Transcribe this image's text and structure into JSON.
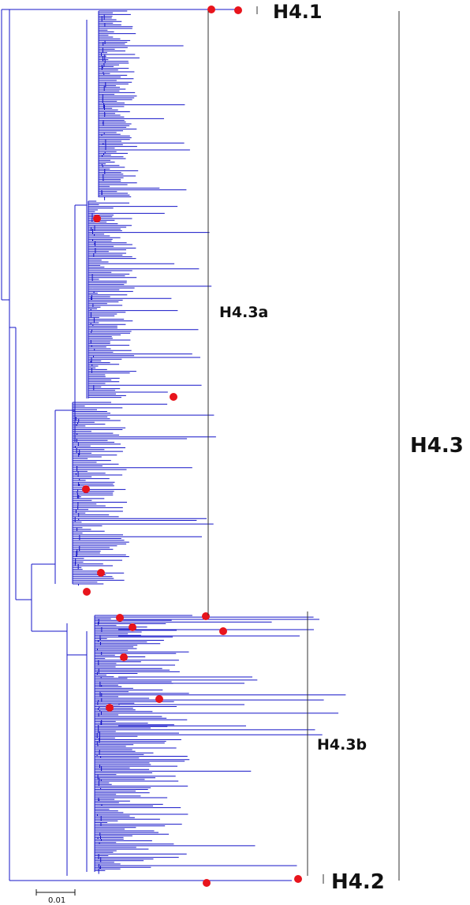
{
  "tree": {
    "clades": {
      "h41": "H4.1",
      "h42": "H4.2",
      "h43": "H4.3",
      "h43a": "H4.3a",
      "h43b": "H4.3b"
    },
    "scale_bar": {
      "label": "0.01"
    }
  },
  "colors": {
    "branches": "#1414c8",
    "markers": "#e8141c",
    "brackets": "#333333",
    "text": "#111111"
  }
}
